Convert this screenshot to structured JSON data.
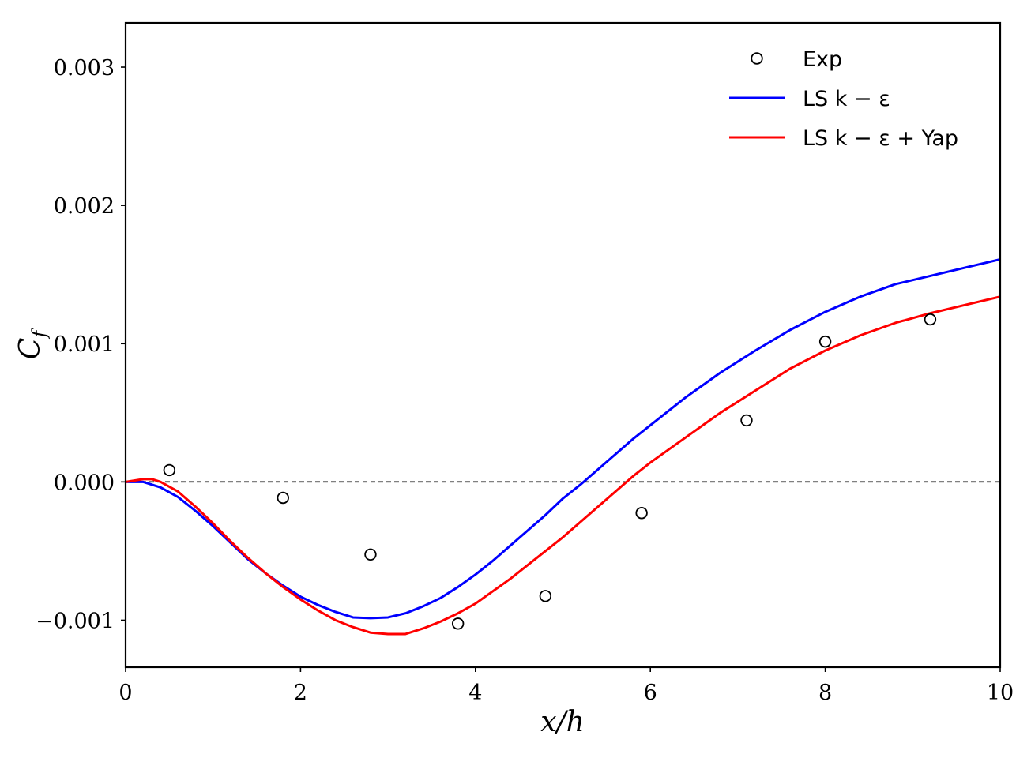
{
  "chart_data": {
    "type": "line",
    "xlabel": "x/h",
    "ylabel": "C_f",
    "xlim": [
      0,
      10
    ],
    "ylim": [
      -0.00134,
      0.00332
    ],
    "xticks": [
      0,
      2,
      4,
      6,
      8,
      10
    ],
    "xtick_labels": [
      "0",
      "2",
      "4",
      "6",
      "8",
      "10"
    ],
    "yticks": [
      -0.001,
      0.0,
      0.001,
      0.002,
      0.003
    ],
    "ytick_labels": [
      "−0.001",
      "0.000",
      "0.001",
      "0.002",
      "0.003"
    ],
    "reference_line": {
      "y": 0.0,
      "style": "dashed",
      "color": "#000000"
    },
    "legend_position": "top-right",
    "grid": false,
    "series": [
      {
        "name": "Exp",
        "kind": "markers",
        "marker": "open-circle",
        "color": "#000000",
        "x": [
          0.5,
          1.8,
          2.8,
          3.8,
          4.8,
          5.9,
          7.1,
          8.0,
          9.2
        ],
        "y": [
          8.5e-05,
          -0.000115,
          -0.000525,
          -0.001025,
          -0.000825,
          -0.000225,
          0.000445,
          0.001015,
          0.001175
        ]
      },
      {
        "name": "LS k − ε",
        "kind": "line",
        "color": "#0000ff",
        "x": [
          0,
          0.2,
          0.4,
          0.6,
          0.8,
          1.0,
          1.2,
          1.4,
          1.6,
          1.8,
          2.0,
          2.2,
          2.4,
          2.6,
          2.8,
          3.0,
          3.2,
          3.4,
          3.6,
          3.8,
          4.0,
          4.2,
          4.4,
          4.6,
          4.8,
          5.0,
          5.2,
          5.4,
          5.6,
          5.8,
          6.0,
          6.4,
          6.8,
          7.2,
          7.6,
          8.0,
          8.4,
          8.8,
          9.2,
          9.6,
          10.0
        ],
        "y": [
          0.0,
          0.0,
          -4e-05,
          -0.00011,
          -0.00021,
          -0.00032,
          -0.00044,
          -0.00056,
          -0.00066,
          -0.00075,
          -0.00083,
          -0.00089,
          -0.00094,
          -0.00098,
          -0.000985,
          -0.00098,
          -0.00095,
          -0.0009,
          -0.00084,
          -0.00076,
          -0.00067,
          -0.00057,
          -0.00046,
          -0.00035,
          -0.00024,
          -0.00012,
          -2e-05,
          9e-05,
          0.0002,
          0.00031,
          0.00041,
          0.00061,
          0.00079,
          0.00095,
          0.0011,
          0.00123,
          0.00134,
          0.00143,
          0.00149,
          0.00155,
          0.00161
        ]
      },
      {
        "name": "LS k − ε + Yap",
        "kind": "line",
        "color": "#ff0000",
        "x": [
          0,
          0.1,
          0.2,
          0.3,
          0.4,
          0.6,
          0.8,
          1.0,
          1.2,
          1.4,
          1.6,
          1.8,
          2.0,
          2.2,
          2.4,
          2.6,
          2.8,
          3.0,
          3.2,
          3.4,
          3.6,
          3.8,
          4.0,
          4.2,
          4.4,
          4.6,
          4.8,
          5.0,
          5.2,
          5.4,
          5.6,
          5.8,
          6.0,
          6.4,
          6.8,
          7.2,
          7.6,
          8.0,
          8.4,
          8.8,
          9.2,
          9.6,
          10.0
        ],
        "y": [
          0.0,
          1e-05,
          2e-05,
          2e-05,
          0.0,
          -7e-05,
          -0.00018,
          -0.0003,
          -0.00043,
          -0.00055,
          -0.00066,
          -0.00076,
          -0.00085,
          -0.00093,
          -0.001,
          -0.00105,
          -0.00109,
          -0.0011,
          -0.0011,
          -0.00106,
          -0.00101,
          -0.00095,
          -0.00088,
          -0.00079,
          -0.0007,
          -0.0006,
          -0.0005,
          -0.0004,
          -0.00029,
          -0.00018,
          -7e-05,
          4e-05,
          0.00014,
          0.00032,
          0.0005,
          0.00066,
          0.00082,
          0.00095,
          0.00106,
          0.00115,
          0.00122,
          0.00128,
          0.00134
        ]
      }
    ]
  }
}
